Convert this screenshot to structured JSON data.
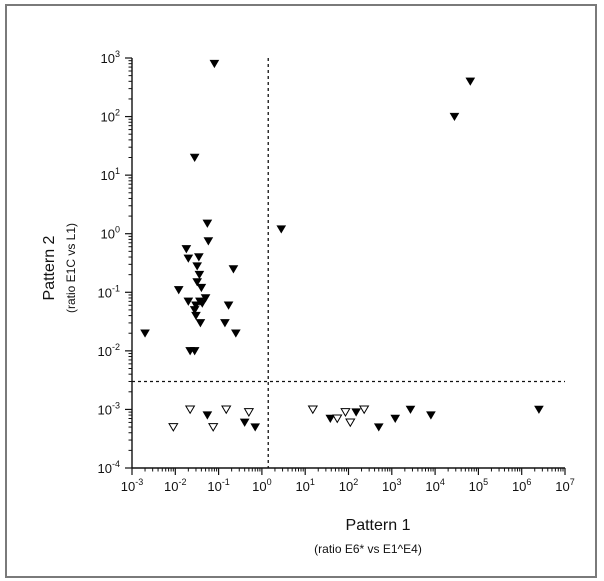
{
  "chart_data": {
    "type": "scatter",
    "x_scale": "log",
    "y_scale": "log",
    "xlim": [
      0.001,
      10000000
    ],
    "ylim": [
      0.0001,
      1000
    ],
    "x_ticks": [
      {
        "value": 0.001,
        "base": "10",
        "exp": "-3"
      },
      {
        "value": 0.01,
        "base": "10",
        "exp": "-2"
      },
      {
        "value": 0.1,
        "base": "10",
        "exp": "-1"
      },
      {
        "value": 1,
        "base": "10",
        "exp": "0"
      },
      {
        "value": 10,
        "base": "10",
        "exp": "1"
      },
      {
        "value": 100,
        "base": "10",
        "exp": "2"
      },
      {
        "value": 1000,
        "base": "10",
        "exp": "3"
      },
      {
        "value": 10000,
        "base": "10",
        "exp": "4"
      },
      {
        "value": 100000,
        "base": "10",
        "exp": "5"
      },
      {
        "value": 1000000,
        "base": "10",
        "exp": "6"
      },
      {
        "value": 10000000,
        "base": "10",
        "exp": "7"
      }
    ],
    "y_ticks": [
      {
        "value": 0.0001,
        "base": "10",
        "exp": "-4"
      },
      {
        "value": 0.001,
        "base": "10",
        "exp": "-3"
      },
      {
        "value": 0.01,
        "base": "10",
        "exp": "-2"
      },
      {
        "value": 0.1,
        "base": "10",
        "exp": "-1"
      },
      {
        "value": 1,
        "base": "10",
        "exp": "0"
      },
      {
        "value": 10,
        "base": "10",
        "exp": "1"
      },
      {
        "value": 100,
        "base": "10",
        "exp": "2"
      },
      {
        "value": 1000,
        "base": "10",
        "exp": "3"
      }
    ],
    "xlabel": "Pattern 1",
    "xlabel_sub": "(ratio E6* vs E1^E4)",
    "ylabel": "Pattern 2",
    "ylabel_sub": "(ratio E1C vs L1)",
    "thresholds": {
      "x": 1.4,
      "y": 0.003
    },
    "grid": false,
    "series": [
      {
        "marker": "filled-triangle-down",
        "color": "#000000",
        "points": [
          [
            0.002,
            0.02
          ],
          [
            0.012,
            0.11
          ],
          [
            0.018,
            0.55
          ],
          [
            0.02,
            0.38
          ],
          [
            0.02,
            0.07
          ],
          [
            0.022,
            0.01
          ],
          [
            0.028,
            0.01
          ],
          [
            0.028,
            20
          ],
          [
            0.028,
            0.05
          ],
          [
            0.03,
            0.06
          ],
          [
            0.03,
            0.04
          ],
          [
            0.032,
            0.28
          ],
          [
            0.032,
            0.15
          ],
          [
            0.035,
            0.4
          ],
          [
            0.036,
            0.2
          ],
          [
            0.037,
            0.07
          ],
          [
            0.038,
            0.03
          ],
          [
            0.04,
            0.12
          ],
          [
            0.042,
            0.065
          ],
          [
            0.05,
            0.08
          ],
          [
            0.055,
            1.5
          ],
          [
            0.058,
            0.75
          ],
          [
            0.08,
            800
          ],
          [
            0.14,
            0.03
          ],
          [
            0.17,
            0.06
          ],
          [
            0.22,
            0.25
          ],
          [
            0.25,
            0.02
          ],
          [
            2.8,
            1.2
          ],
          [
            0.055,
            0.0008
          ],
          [
            0.4,
            0.0006
          ],
          [
            0.7,
            0.0005
          ],
          [
            38,
            0.0007
          ],
          [
            150,
            0.0009
          ],
          [
            500,
            0.0005
          ],
          [
            1200,
            0.0007
          ],
          [
            2700,
            0.001
          ],
          [
            8000,
            0.0008
          ],
          [
            28000,
            100
          ],
          [
            65000,
            400
          ],
          [
            2500000,
            0.001
          ]
        ]
      },
      {
        "marker": "open-triangle-down",
        "color": "#000000",
        "points": [
          [
            0.009,
            0.0005
          ],
          [
            0.022,
            0.001
          ],
          [
            0.075,
            0.0005
          ],
          [
            0.15,
            0.001
          ],
          [
            0.5,
            0.0009
          ],
          [
            15,
            0.001
          ],
          [
            55,
            0.0007
          ],
          [
            85,
            0.0009
          ],
          [
            110,
            0.0006
          ],
          [
            230,
            0.001
          ]
        ]
      }
    ]
  }
}
